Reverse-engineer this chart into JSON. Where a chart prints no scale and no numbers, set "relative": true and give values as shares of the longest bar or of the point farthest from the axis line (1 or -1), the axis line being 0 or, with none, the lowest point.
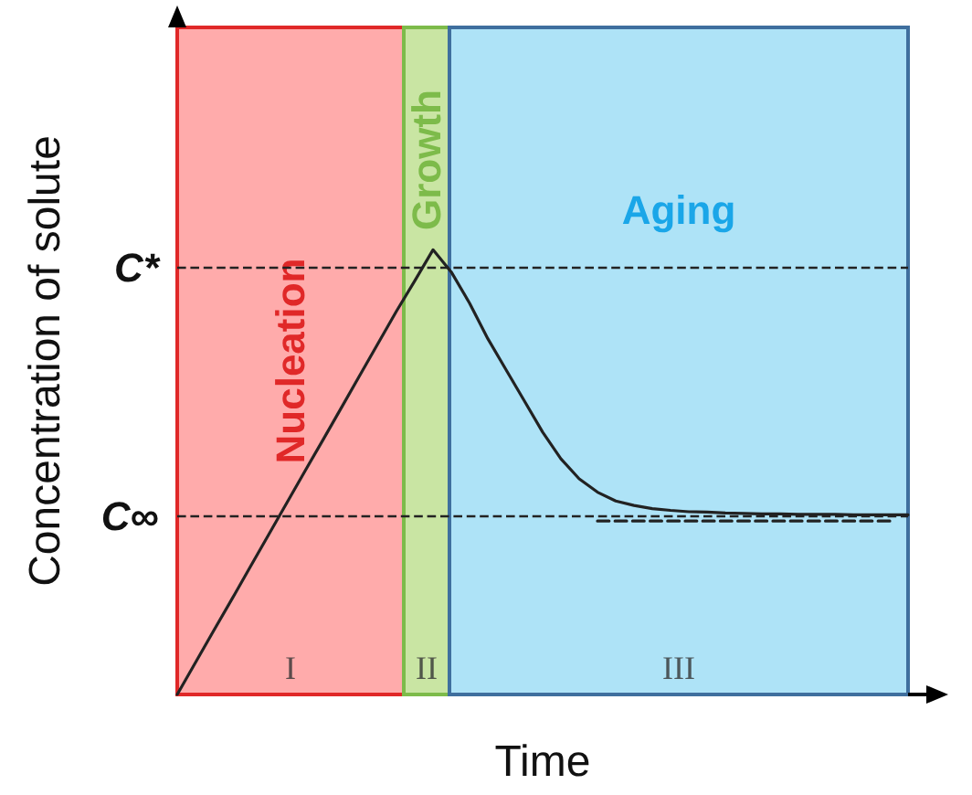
{
  "chart_data": {
    "type": "line",
    "xlabel": "Time",
    "ylabel": "Concentration of solute",
    "relative": true,
    "marker": "none",
    "categories": [
      null,
      null,
      null,
      null,
      null,
      null,
      null,
      null,
      null,
      null,
      null,
      null,
      null,
      null,
      null,
      null,
      null,
      null,
      null,
      null,
      null,
      null,
      null,
      null,
      null,
      null,
      null,
      null,
      null,
      null,
      null,
      null,
      null,
      null,
      null,
      null,
      null,
      null,
      null,
      null,
      null
    ],
    "series": [
      {
        "color": "#222222",
        "values": [
          0,
          0.072,
          0.144,
          0.215,
          0.287,
          0.359,
          0.431,
          0.503,
          0.574,
          0.646,
          0.718,
          0.79,
          0.862,
          0.93,
          1,
          0.95,
          0.88,
          0.8,
          0.73,
          0.66,
          0.59,
          0.53,
          0.485,
          0.455,
          0.435,
          0.425,
          0.418,
          0.414,
          0.411,
          0.41,
          0.408,
          0.407,
          0.406,
          0.406,
          0.405,
          0.405,
          0.405,
          0.404,
          0.404,
          0.404,
          0.404
        ],
        "line_style": "solid"
      },
      {
        "color": "#222222",
        "values": [
          null,
          null,
          null,
          null,
          null,
          null,
          null,
          null,
          null,
          null,
          null,
          null,
          null,
          null,
          null,
          null,
          null,
          null,
          null,
          null,
          null,
          null,
          null,
          0.39,
          0.39,
          0.39,
          0.39,
          0.39,
          0.39,
          0.39,
          0.39,
          0.39,
          0.39,
          0.39,
          0.39,
          0.39,
          0.39,
          0.39,
          0.39,
          0.39,
          null
        ],
        "line_style": "dashed"
      }
    ],
    "ref_lines": [
      {
        "axis": "y",
        "value": 0.956,
        "label": "C*",
        "line_style": "dashed",
        "color": "#222222"
      },
      {
        "axis": "y",
        "value": 0.403,
        "label": "C∞",
        "line_style": "dashed",
        "color": "#222222"
      }
    ],
    "annotations": [
      "Nucleation",
      "Growth",
      "Aging",
      "I",
      "II",
      "III"
    ]
  }
}
